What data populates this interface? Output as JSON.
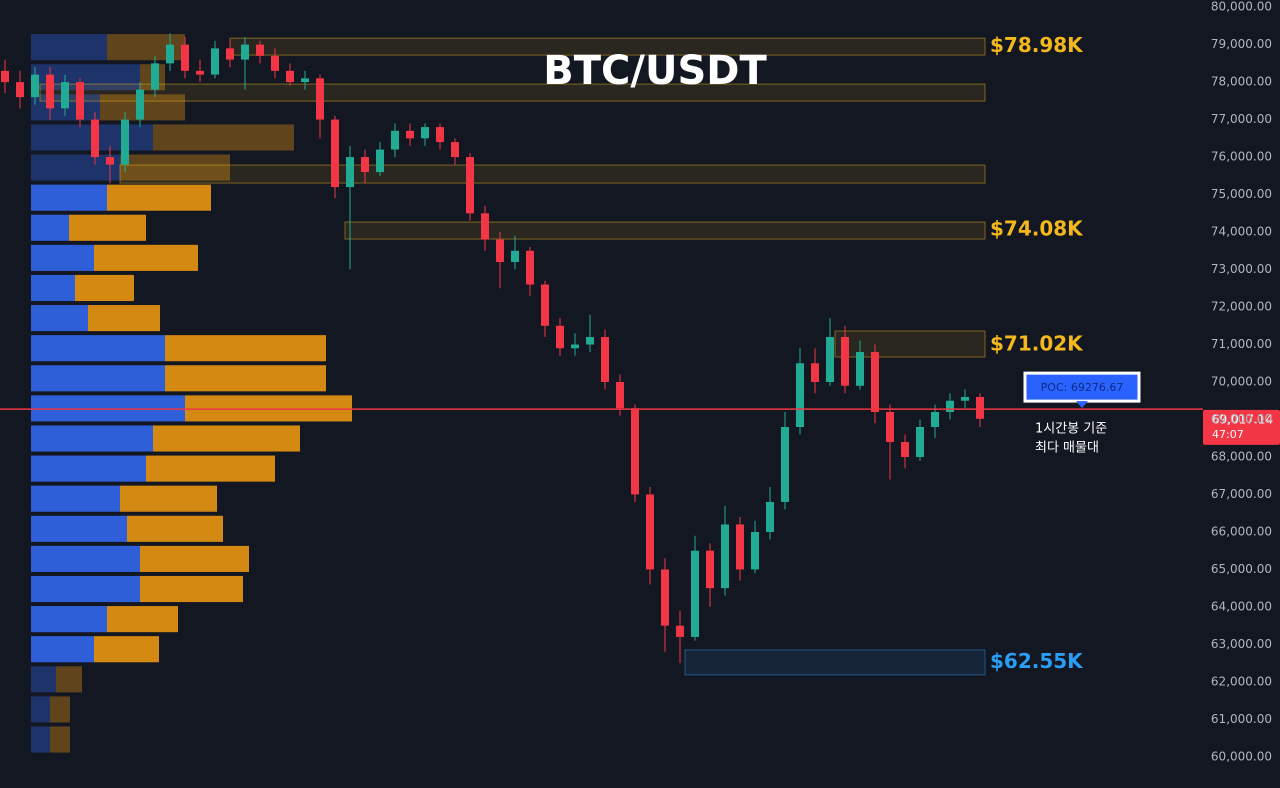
{
  "chart_data": {
    "type": "candlestick",
    "title": "BTC/USDT",
    "ylim": [
      59170,
      80190
    ],
    "yticks": [
      {
        "value": 60000,
        "label": "60,000.00"
      },
      {
        "value": 61000,
        "label": "61,000.00"
      },
      {
        "value": 62000,
        "label": "62,000.00"
      },
      {
        "value": 63000,
        "label": "63,000.00"
      },
      {
        "value": 64000,
        "label": "64,000.00"
      },
      {
        "value": 65000,
        "label": "65,000.00"
      },
      {
        "value": 66000,
        "label": "66,000.00"
      },
      {
        "value": 67000,
        "label": "67,000.00"
      },
      {
        "value": 68000,
        "label": "68,000.00"
      },
      {
        "value": 69000,
        "label": "69,000.00"
      },
      {
        "value": 70000,
        "label": "70,000.00"
      },
      {
        "value": 71000,
        "label": "71,000.00"
      },
      {
        "value": 72000,
        "label": "72,000.00"
      },
      {
        "value": 73000,
        "label": "73,000.00"
      },
      {
        "value": 74000,
        "label": "74,000.00"
      },
      {
        "value": 75000,
        "label": "75,000.00"
      },
      {
        "value": 76000,
        "label": "76,000.00"
      },
      {
        "value": 77000,
        "label": "77,000.00"
      },
      {
        "value": 78000,
        "label": "78,000.00"
      },
      {
        "value": 79000,
        "label": "79,000.00"
      },
      {
        "value": 80000,
        "label": "80,000.00"
      }
    ],
    "up_color": "#22ab94",
    "down_color": "#f23645",
    "candles": [
      [
        78300,
        78600,
        77700,
        78000
      ],
      [
        78000,
        78300,
        77300,
        77600
      ],
      [
        77600,
        78400,
        77400,
        78200
      ],
      [
        78200,
        78400,
        77000,
        77300
      ],
      [
        77300,
        78200,
        77100,
        78000
      ],
      [
        78000,
        78100,
        76800,
        77000
      ],
      [
        77000,
        77200,
        75800,
        76000
      ],
      [
        76000,
        76300,
        75300,
        75800
      ],
      [
        75800,
        77200,
        75600,
        77000
      ],
      [
        77000,
        78000,
        76800,
        77800
      ],
      [
        77800,
        78700,
        77600,
        78500
      ],
      [
        78500,
        79300,
        78300,
        79000
      ],
      [
        79000,
        79200,
        78100,
        78300
      ],
      [
        78300,
        78600,
        78000,
        78200
      ],
      [
        78200,
        79100,
        78100,
        78900
      ],
      [
        78900,
        79100,
        78400,
        78600
      ],
      [
        78600,
        79200,
        77800,
        79000
      ],
      [
        79000,
        79100,
        78500,
        78700
      ],
      [
        78700,
        78900,
        78100,
        78300
      ],
      [
        78300,
        78500,
        77900,
        78000
      ],
      [
        78000,
        78300,
        77800,
        78100
      ],
      [
        78100,
        78200,
        76500,
        77000
      ],
      [
        77000,
        77100,
        74900,
        75200
      ],
      [
        75200,
        76300,
        73000,
        76000
      ],
      [
        76000,
        76200,
        75300,
        75600
      ],
      [
        75600,
        76400,
        75500,
        76200
      ],
      [
        76200,
        76900,
        76000,
        76700
      ],
      [
        76700,
        76900,
        76300,
        76500
      ],
      [
        76500,
        76900,
        76300,
        76800
      ],
      [
        76800,
        76900,
        76200,
        76400
      ],
      [
        76400,
        76500,
        75800,
        76000
      ],
      [
        76000,
        76100,
        74300,
        74500
      ],
      [
        74500,
        74700,
        73500,
        73800
      ],
      [
        73800,
        74000,
        72500,
        73200
      ],
      [
        73200,
        73900,
        73000,
        73500
      ],
      [
        73500,
        73600,
        72300,
        72600
      ],
      [
        72600,
        72700,
        71200,
        71500
      ],
      [
        71500,
        71700,
        70700,
        70900
      ],
      [
        70900,
        71300,
        70700,
        71000
      ],
      [
        71000,
        71800,
        70800,
        71200
      ],
      [
        71200,
        71400,
        69800,
        70000
      ],
      [
        70000,
        70200,
        69100,
        69300
      ],
      [
        69300,
        69400,
        66800,
        67000
      ],
      [
        67000,
        67200,
        64600,
        65000
      ],
      [
        65000,
        65300,
        62800,
        63500
      ],
      [
        63500,
        63900,
        62500,
        63200
      ],
      [
        63200,
        65900,
        63100,
        65500
      ],
      [
        65500,
        65700,
        64000,
        64500
      ],
      [
        64500,
        66700,
        64300,
        66200
      ],
      [
        66200,
        66400,
        64700,
        65000
      ],
      [
        65000,
        66300,
        64900,
        66000
      ],
      [
        66000,
        67200,
        65800,
        66800
      ],
      [
        66800,
        69200,
        66600,
        68800
      ],
      [
        68800,
        70900,
        68600,
        70500
      ],
      [
        70500,
        70900,
        69700,
        70000
      ],
      [
        70000,
        71700,
        69900,
        71200
      ],
      [
        71200,
        71500,
        69700,
        69900
      ],
      [
        69900,
        71100,
        69800,
        70800
      ],
      [
        70800,
        71000,
        68900,
        69200
      ],
      [
        69200,
        69400,
        67400,
        68400
      ],
      [
        68400,
        68600,
        67700,
        68000
      ],
      [
        68000,
        69000,
        67900,
        68800
      ],
      [
        68800,
        69400,
        68500,
        69200
      ],
      [
        69200,
        69700,
        69000,
        69500
      ],
      [
        69500,
        69800,
        69300,
        69600
      ],
      [
        69600,
        69700,
        68800,
        69017.14
      ]
    ],
    "last_price": {
      "value": 69017.14,
      "label": "69,017.14"
    },
    "countdown": "47:07",
    "poc": {
      "value": 69276.67,
      "label": "POC: 69276.67"
    },
    "poc_note": [
      "1시간봉 기준",
      "최다 매물대"
    ],
    "levels": [
      {
        "value": 78980,
        "label": "$78.98K",
        "zone": [
          79173,
          78720
        ],
        "color": "#f5b81c"
      },
      {
        "value": 74080,
        "label": "$74.08K",
        "zone": [
          74267,
          73813
        ],
        "color": "#f5b81c"
      },
      {
        "value": 71020,
        "label": "$71.02K",
        "zone": [
          71360,
          70667
        ],
        "color": "#f5b81c"
      },
      {
        "value": 62550,
        "label": "$62.55K",
        "zone": [
          62853,
          62187
        ],
        "color": "#2a9df4"
      }
    ],
    "zones": [
      {
        "zone": [
          77947,
          77493
        ],
        "color": "#f5b81c"
      },
      {
        "zone": [
          75787,
          75307
        ],
        "color": "#f5b81c"
      }
    ],
    "volume_profile": {
      "bins": [
        79280,
        78477,
        77674,
        76871,
        76068,
        75265,
        74462,
        73659,
        72856,
        72053,
        71250,
        70447,
        69644,
        68841,
        68038,
        67235,
        66432,
        65629,
        64826,
        64023,
        63220,
        62417,
        61614,
        60811,
        60008
      ],
      "buy": [
        76,
        109,
        69,
        122,
        89,
        76,
        38,
        63,
        44,
        57,
        134,
        134,
        154,
        122,
        115,
        89,
        96,
        109,
        109,
        76,
        63,
        25,
        19,
        19
      ],
      "sell": [
        78,
        25,
        85,
        141,
        110,
        104,
        77,
        104,
        59,
        72,
        161,
        161,
        167,
        147,
        129,
        97,
        96,
        109,
        103,
        71,
        65,
        26,
        20,
        20
      ],
      "buy_color": "#2f5fd8",
      "sell_color": "#d48a12"
    }
  }
}
